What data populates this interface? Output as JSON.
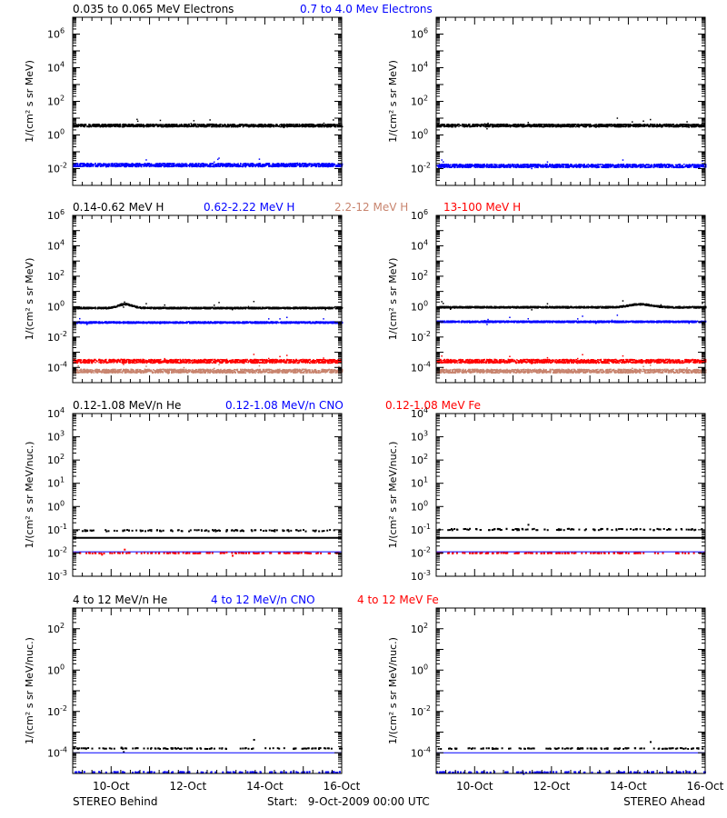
{
  "colors": {
    "black": "#000000",
    "blue": "#0000ff",
    "tan": "#c8846e",
    "red": "#ff0000"
  },
  "footer": {
    "left": "STEREO Behind",
    "center": "Start:   9-Oct-2009 00:00 UTC",
    "right": "STEREO Ahead"
  },
  "chart_data": [
    {
      "type": "scatter",
      "row": 0,
      "panel": "STEREO Behind",
      "ylabel": "1/(cm² s sr MeV)",
      "ylim_exp": [
        -3,
        7
      ],
      "yticks_exp": [
        -2,
        0,
        2,
        4,
        6
      ],
      "xlim_days": [
        "9-Oct",
        "16-Oct"
      ],
      "xticks": [
        "10-Oct",
        "12-Oct",
        "14-Oct",
        "16-Oct"
      ],
      "legend": [
        {
          "text": "0.035 to 0.065 MeV Electrons",
          "color": "#000000"
        },
        {
          "text": "0.7 to 4.0 Mev Electrons",
          "color": "#0000ff"
        }
      ],
      "series": [
        {
          "name": "0.035 to 0.065 MeV Electrons",
          "color": "#000000",
          "level_exp": 0.6,
          "spread": 0.08,
          "bump": null
        },
        {
          "name": "0.7 to 4.0 Mev Electrons",
          "color": "#0000ff",
          "level_exp": -1.75,
          "spread": 0.1,
          "bump": null
        }
      ]
    },
    {
      "type": "scatter",
      "row": 0,
      "panel": "STEREO Ahead",
      "ylabel": "1/(cm² s sr MeV)",
      "ylim_exp": [
        -3,
        7
      ],
      "yticks_exp": [
        -2,
        0,
        2,
        4,
        6
      ],
      "xlim_days": [
        "9-Oct",
        "16-Oct"
      ],
      "xticks": [
        "10-Oct",
        "12-Oct",
        "14-Oct",
        "16-Oct"
      ],
      "legend": [],
      "series": [
        {
          "name": "0.035 to 0.065 MeV Electrons",
          "color": "#000000",
          "level_exp": 0.6,
          "spread": 0.08,
          "bump": null
        },
        {
          "name": "0.7 to 4.0 Mev Electrons",
          "color": "#0000ff",
          "level_exp": -1.8,
          "spread": 0.1,
          "bump": null
        }
      ]
    },
    {
      "type": "scatter",
      "row": 1,
      "panel": "STEREO Behind",
      "ylabel": "1/(cm² s sr MeV)",
      "ylim_exp": [
        -5,
        6
      ],
      "yticks_exp": [
        -4,
        -2,
        0,
        2,
        4,
        6
      ],
      "xlim_days": [
        "9-Oct",
        "16-Oct"
      ],
      "xticks": [
        "10-Oct",
        "12-Oct",
        "14-Oct",
        "16-Oct"
      ],
      "legend": [
        {
          "text": "0.14-0.62 MeV H",
          "color": "#000000"
        },
        {
          "text": "0.62-2.22 MeV H",
          "color": "#0000ff"
        },
        {
          "text": "2.2-12 MeV H",
          "color": "#c8846e"
        },
        {
          "text": "13-100 MeV H",
          "color": "#ff0000"
        }
      ],
      "series": [
        {
          "name": "0.14-0.62 MeV H",
          "color": "#000000",
          "level_exp": -0.05,
          "spread": 0.05,
          "bump": {
            "day": 1.35,
            "height": 0.25,
            "width": 0.25
          }
        },
        {
          "name": "0.62-2.22 MeV H",
          "color": "#0000ff",
          "level_exp": -1.0,
          "spread": 0.05,
          "bump": null
        },
        {
          "name": "2.2-12 MeV H",
          "color": "#c8846e",
          "level_exp": -4.2,
          "spread": 0.12,
          "bump": null
        },
        {
          "name": "13-100 MeV H",
          "color": "#ff0000",
          "level_exp": -3.55,
          "spread": 0.12,
          "bump": null
        }
      ]
    },
    {
      "type": "scatter",
      "row": 1,
      "panel": "STEREO Ahead",
      "ylabel": "1/(cm² s sr MeV)",
      "ylim_exp": [
        -5,
        6
      ],
      "yticks_exp": [
        -4,
        -2,
        0,
        2,
        4,
        6
      ],
      "xlim_days": [
        "9-Oct",
        "16-Oct"
      ],
      "xticks": [
        "10-Oct",
        "12-Oct",
        "14-Oct",
        "16-Oct"
      ],
      "legend": [],
      "series": [
        {
          "name": "0.14-0.62 MeV H",
          "color": "#000000",
          "level_exp": 0.0,
          "spread": 0.05,
          "bump": {
            "day": 5.3,
            "height": 0.2,
            "width": 0.4
          }
        },
        {
          "name": "0.62-2.22 MeV H",
          "color": "#0000ff",
          "level_exp": -0.95,
          "spread": 0.05,
          "bump": null
        },
        {
          "name": "2.2-12 MeV H",
          "color": "#c8846e",
          "level_exp": -4.2,
          "spread": 0.12,
          "bump": null
        },
        {
          "name": "13-100 MeV H",
          "color": "#ff0000",
          "level_exp": -3.55,
          "spread": 0.12,
          "bump": null
        }
      ]
    },
    {
      "type": "scatter",
      "row": 2,
      "panel": "STEREO Behind",
      "ylabel": "1/(cm² s sr MeV/nuc.)",
      "ylim_exp": [
        -3,
        4
      ],
      "yticks_exp": [
        -3,
        -2,
        -1,
        0,
        1,
        2,
        3,
        4
      ],
      "xlim_days": [
        "9-Oct",
        "16-Oct"
      ],
      "xticks": [
        "10-Oct",
        "12-Oct",
        "14-Oct",
        "16-Oct"
      ],
      "legend": [
        {
          "text": "0.12-1.08 MeV/n He",
          "color": "#000000"
        },
        {
          "text": "0.12-1.08 MeV/n CNO",
          "color": "#0000ff"
        },
        {
          "text": "0.12-1.08 MeV Fe",
          "color": "#ff0000"
        }
      ],
      "series": [
        {
          "name": "0.12-1.08 MeV/n He",
          "color": "#000000",
          "level_exp": -1.0,
          "spread": 0.03,
          "sparse": true,
          "bump": null
        },
        {
          "name": "He background",
          "color": "#000000",
          "level_exp": -1.35,
          "spread": 0.0,
          "line": true,
          "bump": null
        },
        {
          "name": "0.12-1.08 MeV/n CNO",
          "color": "#0000ff",
          "level_exp": -1.95,
          "spread": 0.01,
          "line": true,
          "bump": null
        },
        {
          "name": "0.12-1.08 MeV Fe",
          "color": "#ff0000",
          "level_exp": -1.97,
          "spread": 0.01,
          "sparse": true,
          "bump": null
        }
      ]
    },
    {
      "type": "scatter",
      "row": 2,
      "panel": "STEREO Ahead",
      "ylabel": "1/(cm² s sr MeV/nuc.)",
      "ylim_exp": [
        -3,
        4
      ],
      "yticks_exp": [
        -3,
        -2,
        -1,
        0,
        1,
        2,
        3,
        4
      ],
      "xlim_days": [
        "9-Oct",
        "16-Oct"
      ],
      "xticks": [
        "10-Oct",
        "12-Oct",
        "14-Oct",
        "16-Oct"
      ],
      "legend": [],
      "series": [
        {
          "name": "0.12-1.08 MeV/n He",
          "color": "#000000",
          "level_exp": -0.95,
          "spread": 0.03,
          "sparse": true,
          "bump": null
        },
        {
          "name": "He background",
          "color": "#000000",
          "level_exp": -1.35,
          "spread": 0.0,
          "line": true,
          "bump": null
        },
        {
          "name": "0.12-1.08 MeV/n CNO",
          "color": "#0000ff",
          "level_exp": -1.95,
          "spread": 0.01,
          "line": true,
          "bump": null
        },
        {
          "name": "0.12-1.08 MeV Fe",
          "color": "#ff0000",
          "level_exp": -1.97,
          "spread": 0.01,
          "sparse": true,
          "bump": null
        }
      ]
    },
    {
      "type": "scatter",
      "row": 3,
      "panel": "STEREO Behind",
      "ylabel": "1/(cm² s sr MeV/nuc.)",
      "ylim_exp": [
        -5,
        3
      ],
      "yticks_exp": [
        -4,
        -2,
        0,
        2
      ],
      "xlim_days": [
        "9-Oct",
        "16-Oct"
      ],
      "xticks": [
        "10-Oct",
        "12-Oct",
        "14-Oct",
        "16-Oct"
      ],
      "legend": [
        {
          "text": "4 to 12 MeV/n He",
          "color": "#000000"
        },
        {
          "text": "4 to 12 MeV/n CNO",
          "color": "#0000ff"
        },
        {
          "text": "4 to 12 MeV Fe",
          "color": "#ff0000"
        }
      ],
      "series": [
        {
          "name": "4 to 12 MeV/n He",
          "color": "#000000",
          "level_exp": -3.75,
          "spread": 0.0,
          "sparse": true,
          "bump": null
        },
        {
          "name": "4 to 12 MeV/n CNO",
          "color": "#0000ff",
          "level_exp": -4.0,
          "spread": 0.0,
          "line": true,
          "bump": null
        },
        {
          "name": "4 to 12 MeV/n CNO low",
          "color": "#0000ff",
          "level_exp": -4.9,
          "spread": 0.0,
          "sparse": true,
          "bump": null
        }
      ]
    },
    {
      "type": "scatter",
      "row": 3,
      "panel": "STEREO Ahead",
      "ylabel": "1/(cm² s sr MeV/nuc.)",
      "ylim_exp": [
        -5,
        3
      ],
      "yticks_exp": [
        -4,
        -2,
        0,
        2
      ],
      "xlim_days": [
        "9-Oct",
        "16-Oct"
      ],
      "xticks": [
        "10-Oct",
        "12-Oct",
        "14-Oct",
        "16-Oct"
      ],
      "legend": [],
      "series": [
        {
          "name": "4 to 12 MeV/n He",
          "color": "#000000",
          "level_exp": -3.75,
          "spread": 0.0,
          "sparse": true,
          "bump": null
        },
        {
          "name": "4 to 12 MeV/n CNO",
          "color": "#0000ff",
          "level_exp": -4.0,
          "spread": 0.0,
          "line": true,
          "bump": null
        },
        {
          "name": "4 to 12 MeV/n CNO low",
          "color": "#0000ff",
          "level_exp": -4.9,
          "spread": 0.0,
          "sparse": true,
          "bump": null
        }
      ]
    }
  ]
}
